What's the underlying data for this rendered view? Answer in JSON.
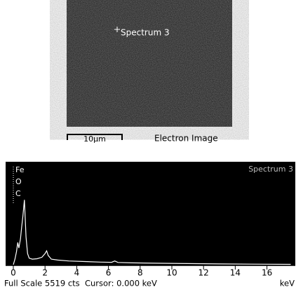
{
  "electron_image": {
    "marker_label": "Spectrum 3",
    "scale_label": "10µm",
    "caption": "Electron Image"
  },
  "chart_data": {
    "type": "line",
    "title": "Spectrum 3",
    "annotations": [
      "Fe",
      "O",
      "C"
    ],
    "x": [
      0,
      0.1,
      0.2,
      0.28,
      0.35,
      0.45,
      0.52,
      0.6,
      0.7,
      0.8,
      0.9,
      1.0,
      1.2,
      1.5,
      1.8,
      2.0,
      2.1,
      2.2,
      2.4,
      2.8,
      3.5,
      4.5,
      5.5,
      6.2,
      6.4,
      6.6,
      7.5,
      9,
      11,
      13,
      15,
      17.5
    ],
    "values": [
      0,
      300,
      700,
      1200,
      900,
      1400,
      2000,
      2600,
      3500,
      1500,
      600,
      350,
      300,
      320,
      400,
      600,
      750,
      500,
      300,
      250,
      200,
      170,
      140,
      130,
      200,
      120,
      100,
      80,
      60,
      40,
      30,
      20
    ],
    "color": "#ffffff",
    "xlim": [
      0,
      17.7
    ],
    "ylim": [
      0,
      5519
    ],
    "xticks": [
      0,
      2,
      4,
      6,
      8,
      10,
      12,
      14,
      16
    ],
    "footer": "Full Scale 5519 cts  Cursor: 0.000 keV",
    "x_unit": "keV"
  }
}
